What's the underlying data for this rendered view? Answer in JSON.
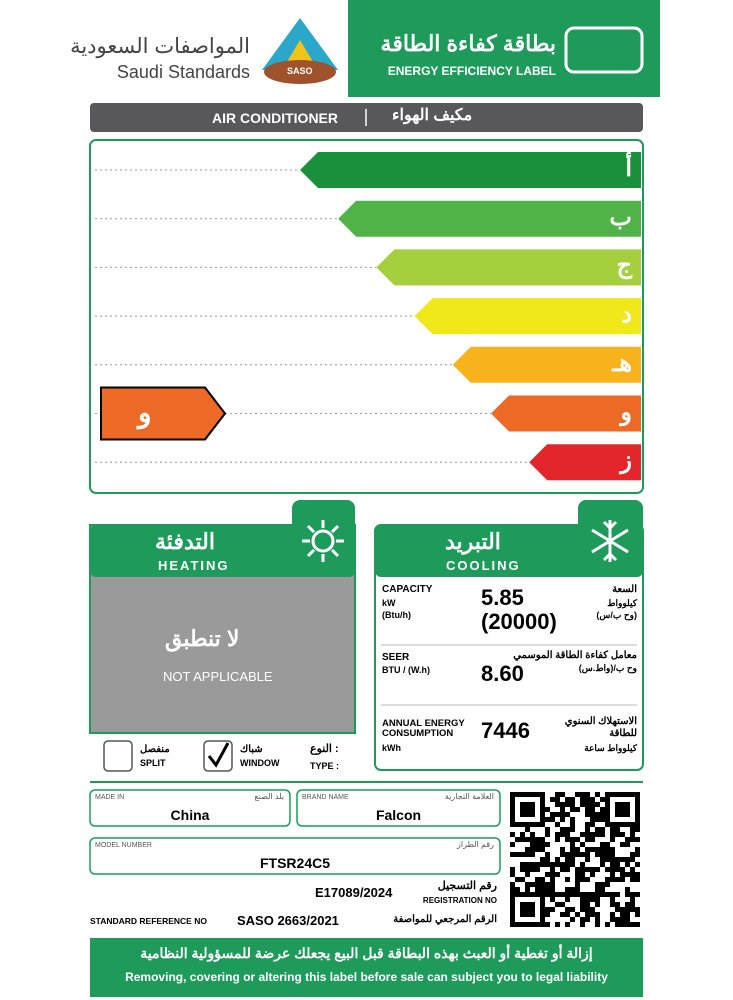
{
  "header": {
    "saso_ar": "المواصفات السعودية",
    "saso_en": "Saudi Standards",
    "logo": "SASO",
    "label_ar": "بطاقة كفاءة الطاقة",
    "label_en": "ENERGY EFFICIENCY LABEL"
  },
  "product": {
    "en": "AIR CONDITIONER",
    "ar": "مكيف الهواء"
  },
  "rating": {
    "classes": [
      "أ",
      "ب",
      "ج",
      "د",
      "هـ",
      "و",
      "ز"
    ],
    "colors": [
      "#1a8f3c",
      "#4fb348",
      "#a5cf3c",
      "#f0e818",
      "#f7b21c",
      "#ec6a25",
      "#e2262b"
    ],
    "selected": "و"
  },
  "heating": {
    "title_ar": "التدفئة",
    "title_en": "HEATING",
    "na_ar": "لا تنطبق",
    "na_en": "NOT APPLICABLE"
  },
  "cooling": {
    "title_ar": "التبريد",
    "title_en": "COOLING",
    "capacity": {
      "en": "CAPACITY",
      "unit1_en": "kW",
      "unit2_en": "(Btu/h)",
      "ar": "السعة",
      "unit1_ar": "كيلوواط",
      "unit2_ar": "(وح ب/س)",
      "value1": "5.85",
      "value2": "(20000)"
    },
    "seer": {
      "en": "SEER",
      "unit_en": "BTU / (W.h)",
      "ar": "معامل كفاءة الطاقة الموسمي",
      "unit_ar": "وح ب/(واط.س)",
      "value": "8.60"
    },
    "annual": {
      "en": "ANNUAL ENERGY CONSUMPTION",
      "unit_en": "kWh",
      "ar": "الاستهلاك السنوي للطاقة",
      "unit_ar": "كيلوواط ساعة",
      "value": "7446"
    }
  },
  "type": {
    "label_ar": "النوع :",
    "label_en": "TYPE :",
    "options": [
      {
        "ar": "منفصل",
        "en": "SPLIT",
        "checked": false
      },
      {
        "ar": "شباك",
        "en": "WINDOW",
        "checked": true
      }
    ]
  },
  "made_in": {
    "label_en": "MADE IN",
    "label_ar": "بلد الصنع",
    "value": "China"
  },
  "brand": {
    "label_en": "BRAND NAME",
    "label_ar": "العلامة التجارية",
    "value": "Falcon"
  },
  "model": {
    "label_en": "MODEL NUMBER",
    "label_ar": "رقم الطراز",
    "value": "FTSR24C5"
  },
  "registration": {
    "value": "E17089/2024",
    "ar": "رقم التسجيل",
    "en": "REGISTRATION NO"
  },
  "standard": {
    "en": "STANDARD REFERENCE NO",
    "value": "SASO 2663/2021",
    "ar": "الرقم المرجعي للمواصفة"
  },
  "footer": {
    "ar": "إزالة أو تغطية أو العبث بهذه البطاقة قبل البيع يجعلك عرضة للمسؤولية النظامية",
    "en": "Removing, covering or altering this label before sale can subject you to legal liability"
  }
}
